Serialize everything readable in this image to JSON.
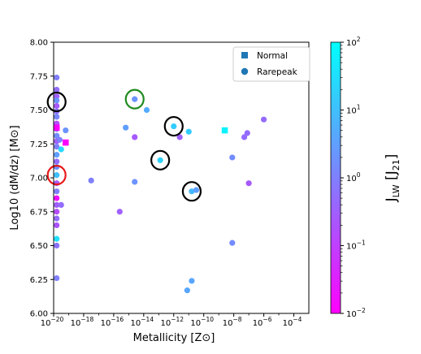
{
  "chart_data": {
    "type": "scatter",
    "xlabel": "Metallicity [Z⊙]",
    "ylabel": "Log10 (dM/dz) [M⊙]",
    "xscale": "log",
    "xlim": [
      1e-20,
      0.001
    ],
    "ylim": [
      6.0,
      8.0
    ],
    "x_ticks": [
      {
        "value": -20,
        "base": "10",
        "exp": "−20"
      },
      {
        "value": -18,
        "base": "10",
        "exp": "−18"
      },
      {
        "value": -16,
        "base": "10",
        "exp": "−16"
      },
      {
        "value": -14,
        "base": "10",
        "exp": "−14"
      },
      {
        "value": -12,
        "base": "10",
        "exp": "−12"
      },
      {
        "value": -10,
        "base": "10",
        "exp": "−10"
      },
      {
        "value": -8,
        "base": "10",
        "exp": "−8"
      },
      {
        "value": -6,
        "base": "10",
        "exp": "−6"
      },
      {
        "value": -4,
        "base": "10",
        "exp": "−4"
      }
    ],
    "y_ticks": [
      "6.00",
      "6.25",
      "6.50",
      "6.75",
      "7.00",
      "7.25",
      "7.50",
      "7.75",
      "8.00"
    ],
    "grid": false,
    "legend": {
      "placement": "top-right",
      "entries": [
        {
          "label": "Normal",
          "marker": "square",
          "color": "#1f77b4"
        },
        {
          "label": "Rarepeak",
          "marker": "circle",
          "color": "#1f77b4"
        }
      ]
    },
    "colorbar": {
      "label_main": "J",
      "label_sub": "LW",
      "label_unit": "[J",
      "label_unit_sub": "21",
      "label_close": "]",
      "scale": "log",
      "range": [
        0.01,
        100
      ],
      "ticks": [
        {
          "value": -2,
          "base": "10",
          "exp": "−2"
        },
        {
          "value": -1,
          "base": "10",
          "exp": "−1"
        },
        {
          "value": 0,
          "base": "10",
          "exp": "0"
        },
        {
          "value": 1,
          "base": "10",
          "exp": "1"
        },
        {
          "value": 2,
          "base": "10",
          "exp": "2"
        }
      ],
      "colormap": "cool",
      "color_low": "#ff00ff",
      "color_high": "#00ffff"
    },
    "series": [
      {
        "marker": "circle",
        "points": [
          {
            "logz": -19.8,
            "y": 7.74,
            "logj": 0.0
          },
          {
            "logz": -19.8,
            "y": 7.65,
            "logj": -0.3
          },
          {
            "logz": -19.8,
            "y": 7.6,
            "logj": -0.5
          },
          {
            "logz": -19.8,
            "y": 7.57,
            "logj": 0.3
          },
          {
            "logz": -19.8,
            "y": 7.53,
            "logj": -0.6
          },
          {
            "logz": -19.8,
            "y": 7.49,
            "logj": -0.2
          },
          {
            "logz": -19.8,
            "y": 7.45,
            "logj": 0.1
          },
          {
            "logz": -19.8,
            "y": 7.4,
            "logj": -0.8
          },
          {
            "logz": -19.8,
            "y": 7.36,
            "logj": -0.4
          },
          {
            "logz": -19.8,
            "y": 7.31,
            "logj": 0.2
          },
          {
            "logz": -19.8,
            "y": 7.27,
            "logj": -0.5
          },
          {
            "logz": -19.8,
            "y": 7.23,
            "logj": 0.0
          },
          {
            "logz": -19.8,
            "y": 7.17,
            "logj": 0.5
          },
          {
            "logz": -19.8,
            "y": 7.12,
            "logj": -0.3
          },
          {
            "logz": -19.8,
            "y": 7.08,
            "logj": 0.3
          },
          {
            "logz": -19.8,
            "y": 7.02,
            "logj": 1.0
          },
          {
            "logz": -19.8,
            "y": 6.96,
            "logj": -0.6
          },
          {
            "logz": -19.8,
            "y": 6.9,
            "logj": 0.0
          },
          {
            "logz": -19.8,
            "y": 6.85,
            "logj": -1.8
          },
          {
            "logz": -19.8,
            "y": 6.8,
            "logj": -0.5
          },
          {
            "logz": -19.8,
            "y": 6.75,
            "logj": -0.8
          },
          {
            "logz": -19.8,
            "y": 6.7,
            "logj": -0.3
          },
          {
            "logz": -19.8,
            "y": 6.65,
            "logj": -0.7
          },
          {
            "logz": -19.8,
            "y": 6.55,
            "logj": 1.5
          },
          {
            "logz": -19.8,
            "y": 6.5,
            "logj": -0.2
          },
          {
            "logz": -19.8,
            "y": 6.26,
            "logj": 0.0
          },
          {
            "logz": -19.6,
            "y": 7.28,
            "logj": 0.0
          },
          {
            "logz": -19.5,
            "y": 7.21,
            "logj": 1.4
          },
          {
            "logz": -19.5,
            "y": 6.8,
            "logj": -0.3
          },
          {
            "logz": -19.2,
            "y": 7.35,
            "logj": 0.3
          },
          {
            "logz": -17.5,
            "y": 6.98,
            "logj": 0.0
          },
          {
            "logz": -15.6,
            "y": 6.75,
            "logj": -0.5
          },
          {
            "logz": -15.2,
            "y": 7.37,
            "logj": 0.5
          },
          {
            "logz": -14.6,
            "y": 7.3,
            "logj": -0.6
          },
          {
            "logz": -14.6,
            "y": 6.97,
            "logj": 0.3
          },
          {
            "logz": -14.6,
            "y": 7.58,
            "logj": 0.3
          },
          {
            "logz": -13.8,
            "y": 7.5,
            "logj": 0.7
          },
          {
            "logz": -12.9,
            "y": 7.13,
            "logj": 1.3
          },
          {
            "logz": -12.0,
            "y": 7.38,
            "logj": 1.2
          },
          {
            "logz": -11.6,
            "y": 7.3,
            "logj": -0.5
          },
          {
            "logz": -11.0,
            "y": 7.34,
            "logj": 1.2
          },
          {
            "logz": -11.1,
            "y": 6.17,
            "logj": 0.6
          },
          {
            "logz": -10.8,
            "y": 6.24,
            "logj": 0.6
          },
          {
            "logz": -10.8,
            "y": 6.9,
            "logj": 0.9
          },
          {
            "logz": -10.5,
            "y": 6.91,
            "logj": 0.5
          },
          {
            "logz": -8.1,
            "y": 7.15,
            "logj": 0.2
          },
          {
            "logz": -8.1,
            "y": 6.52,
            "logj": 0.2
          },
          {
            "logz": -7.3,
            "y": 7.3,
            "logj": -0.3
          },
          {
            "logz": -7.1,
            "y": 7.33,
            "logj": -0.3
          },
          {
            "logz": -7.0,
            "y": 6.96,
            "logj": -0.6
          },
          {
            "logz": -6.0,
            "y": 7.43,
            "logj": -0.3
          }
        ]
      },
      {
        "marker": "square",
        "points": [
          {
            "logz": -19.8,
            "y": 7.37,
            "logj": -2.0
          },
          {
            "logz": -19.2,
            "y": 7.26,
            "logj": -2.0
          },
          {
            "logz": -8.6,
            "y": 7.35,
            "logj": 1.8
          }
        ]
      }
    ],
    "highlight_circles": [
      {
        "logz": -19.8,
        "y": 7.56,
        "color": "#000000"
      },
      {
        "logz": -19.8,
        "y": 7.02,
        "color": "#e8191a"
      },
      {
        "logz": -14.6,
        "y": 7.58,
        "color": "#1e8a1e"
      },
      {
        "logz": -12.0,
        "y": 7.38,
        "color": "#000000"
      },
      {
        "logz": -12.9,
        "y": 7.13,
        "color": "#000000"
      },
      {
        "logz": -10.8,
        "y": 6.9,
        "color": "#000000"
      }
    ]
  }
}
